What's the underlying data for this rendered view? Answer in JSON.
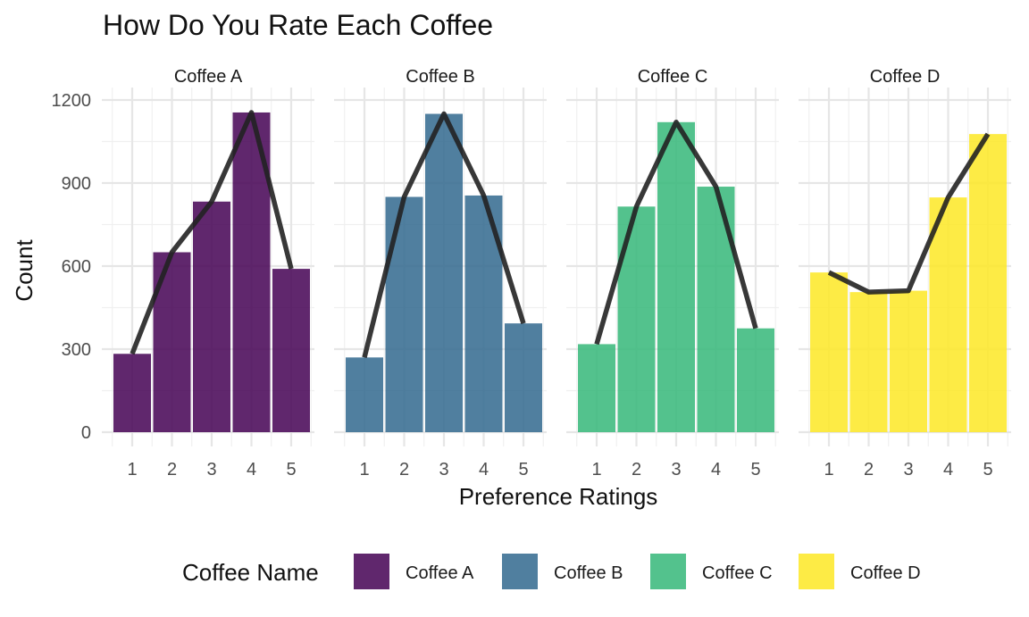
{
  "chart_data": {
    "type": "bar",
    "title": "How Do You Rate Each Coffee",
    "xlabel": "Preference Ratings",
    "ylabel": "Count",
    "ylim": [
      0,
      1200
    ],
    "yticks": [
      0,
      300,
      600,
      900,
      1200
    ],
    "categories": [
      "1",
      "2",
      "3",
      "4",
      "5"
    ],
    "grid": true,
    "legend": {
      "title": "Coffee Name",
      "placement": "bottom",
      "entries": [
        "Coffee A",
        "Coffee B",
        "Coffee C",
        "Coffee D"
      ]
    },
    "series": [
      {
        "name": "Coffee A",
        "color": "#440154",
        "values": [
          283,
          650,
          833,
          1155,
          590
        ]
      },
      {
        "name": "Coffee B",
        "color": "#31688E",
        "values": [
          270,
          850,
          1150,
          855,
          393
        ]
      },
      {
        "name": "Coffee C",
        "color": "#35B779",
        "values": [
          318,
          815,
          1120,
          887,
          375
        ]
      },
      {
        "name": "Coffee D",
        "color": "#FDE725",
        "values": [
          577,
          506,
          511,
          848,
          1077
        ]
      }
    ],
    "line_color": "#222222"
  }
}
